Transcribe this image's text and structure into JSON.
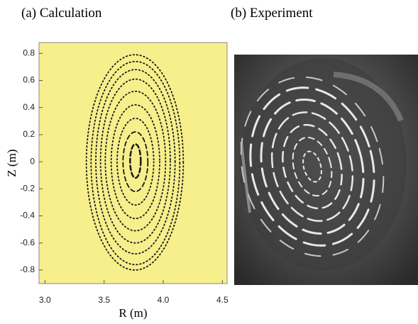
{
  "chart_data": [
    {
      "type": "poincare",
      "title": "(a) Calculation",
      "x_label": "R (m)",
      "y_label": "Z (m)",
      "xlim": [
        2.95,
        4.54
      ],
      "ylim": [
        -0.9,
        0.88
      ],
      "xticks": [
        {
          "value": 3,
          "label": "3.0"
        },
        {
          "value": 3.5,
          "label": "3.5"
        },
        {
          "value": 4,
          "label": "4.0"
        },
        {
          "value": 4.5,
          "label": "4.5"
        }
      ],
      "yticks": [
        0.8,
        0.6,
        0.4,
        0.2,
        0,
        -0.2,
        -0.4,
        -0.6,
        -0.8
      ],
      "background": "#f7ef8c",
      "color": "#1a1a1a",
      "surfaces": [
        {
          "rmin": 3.72,
          "rmax": 3.81,
          "zmin": -0.12,
          "zmax": 0.13
        },
        {
          "rmin": 3.66,
          "rmax": 3.87,
          "zmin": -0.22,
          "zmax": 0.22
        },
        {
          "rmin": 3.61,
          "rmax": 3.92,
          "zmin": -0.32,
          "zmax": 0.32
        },
        {
          "rmin": 3.56,
          "rmax": 3.97,
          "zmin": -0.42,
          "zmax": 0.42
        },
        {
          "rmin": 3.51,
          "rmax": 4.02,
          "zmin": -0.51,
          "zmax": 0.52
        },
        {
          "rmin": 3.47,
          "rmax": 4.06,
          "zmin": -0.6,
          "zmax": 0.61
        },
        {
          "rmin": 3.43,
          "rmax": 4.1,
          "zmin": -0.68,
          "zmax": 0.68
        },
        {
          "rmin": 3.39,
          "rmax": 4.14,
          "zmin": -0.76,
          "zmax": 0.74
        },
        {
          "rmin": 3.35,
          "rmax": 4.17,
          "zmin": -0.8,
          "zmax": 0.79
        }
      ]
    },
    {
      "type": "image",
      "title": "(b) Experiment"
    }
  ]
}
